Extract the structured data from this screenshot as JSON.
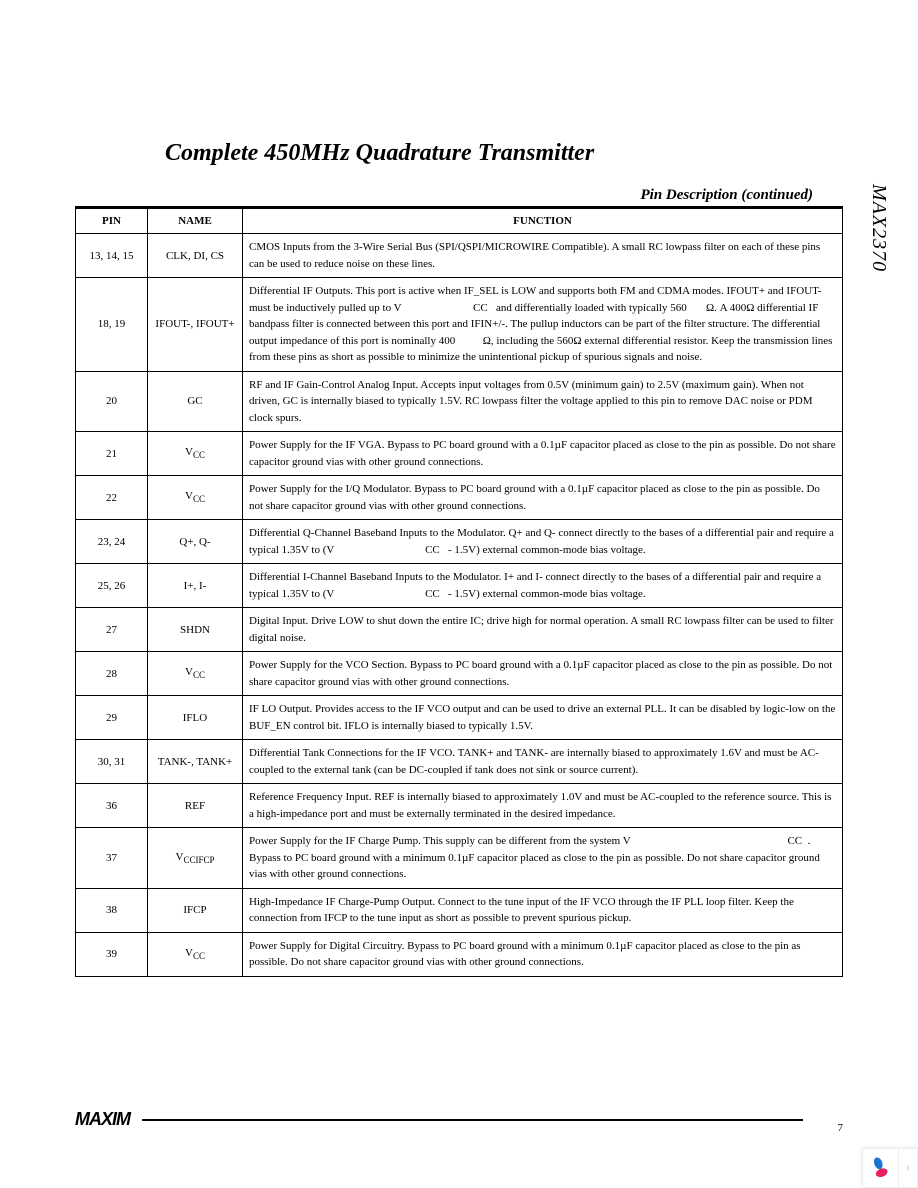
{
  "title": "Complete 450MHz Quadrature Transmitter",
  "subtitle": "Pin Description (continued)",
  "partNumber": "MAX2370",
  "pageNumber": "7",
  "logo": "MAXIM",
  "headers": {
    "pin": "PIN",
    "name": "NAME",
    "function": "FUNCTION"
  },
  "rows": [
    {
      "pin": "13, 14, 15",
      "name": "CLK, DI, CS",
      "function": "CMOS Inputs from the 3-Wire Serial Bus (SPI/QSPI/MICROWIRE Compatible). A small RC lowpass filter on each of these pins can be used to reduce noise on these lines."
    },
    {
      "pin": "18, 19",
      "name": "IFOUT-, IFOUT+",
      "function": "Differential IF Outputs. This port is active when IF_SEL is LOW and supports both FM and CDMA modes. IFOUT+ and IFOUT- must be inductively pulled up to V                          CC   and differentially loaded with typically 560       Ω. A 400Ω differential IF bandpass filter is connected between this port and IFIN+/-. The pullup inductors can be part of the filter structure. The differential output impedance of this port is nominally 400          Ω, including the 560Ω external differential resistor. Keep the transmission lines from these pins as short as possible to minimize the unintentional pickup of spurious signals and noise."
    },
    {
      "pin": "20",
      "name": "GC",
      "function": "RF and IF Gain-Control Analog Input. Accepts input voltages from 0.5V (minimum gain) to 2.5V (maximum gain). When not driven, GC is internally biased to typically 1.5V. RC lowpass filter the voltage applied to this pin to remove DAC noise or PDM clock spurs."
    },
    {
      "pin": "21",
      "name": "Vcc",
      "function": "Power Supply for the IF VGA. Bypass to PC board ground with a 0.1µF capacitor placed as close to the pin as possible. Do not share capacitor ground vias with other ground connections."
    },
    {
      "pin": "22",
      "name": "Vcc",
      "function": "Power Supply for the I/Q Modulator. Bypass to PC board ground with a 0.1µF capacitor placed as close to the pin as possible. Do not share capacitor ground vias with other ground connections."
    },
    {
      "pin": "23, 24",
      "name": "Q+, Q-",
      "function": "Differential Q-Channel Baseband Inputs to the Modulator. Q+ and Q- connect directly to the bases of a differential pair and require a typical 1.35V to (V                                 CC   - 1.5V) external common-mode bias voltage."
    },
    {
      "pin": "25, 26",
      "name": "I+, I-",
      "function": "Differential I-Channel Baseband Inputs to the Modulator. I+ and I- connect directly to the bases of a differential pair and require a typical 1.35V to (V                                 CC   - 1.5V) external common-mode bias voltage."
    },
    {
      "pin": "27",
      "name": "SHDN",
      "function": "Digital Input. Drive LOW to shut down the entire IC; drive high for normal operation. A small RC lowpass filter can be used to filter digital noise."
    },
    {
      "pin": "28",
      "name": "Vcc",
      "function": "Power Supply for the VCO Section. Bypass to PC board ground with a 0.1µF capacitor placed as close to the pin as possible. Do not share capacitor ground vias with other ground connections."
    },
    {
      "pin": "29",
      "name": "IFLO",
      "function": "IF LO Output. Provides access to the IF VCO output and can be used to drive an external PLL. It can be disabled by logic-low on the BUF_EN control bit. IFLO is internally biased to typically 1.5V."
    },
    {
      "pin": "30, 31",
      "name": "TANK-, TANK+",
      "function": "Differential Tank Connections for the IF VCO. TANK+ and TANK- are internally biased to approximately 1.6V and must be AC-coupled to the external tank (can be DC-coupled if tank does not sink or source current)."
    },
    {
      "pin": "36",
      "name": "REF",
      "function": "Reference Frequency Input. REF is internally biased to approximately 1.0V and must be AC-coupled to the reference source. This is a high-impedance port and must be externally terminated in the desired impedance."
    },
    {
      "pin": "37",
      "name": "VccIFCP",
      "function": "Power Supply for the IF Charge Pump. This supply can be different from the system V                                                         CC  . Bypass to PC board ground with a minimum 0.1µF capacitor placed as close to the pin as possible. Do not share capacitor ground vias with other ground connections."
    },
    {
      "pin": "38",
      "name": "IFCP",
      "function": "High-Impedance IF Charge-Pump Output. Connect to the tune input of the IF VCO through the IF PLL loop filter. Keep the connection from IFCP to the tune input as short as possible to prevent spurious pickup."
    },
    {
      "pin": "39",
      "name": "Vcc",
      "function": "Power Supply for Digital Circuitry. Bypass to PC board ground with a minimum 0.1µF capacitor placed as close to the pin as possible. Do not share capacitor ground vias with other ground connections."
    }
  ],
  "widget": {
    "colors": [
      "#f5a623",
      "#7cb342",
      "#1976d2",
      "#e91e63"
    ]
  }
}
